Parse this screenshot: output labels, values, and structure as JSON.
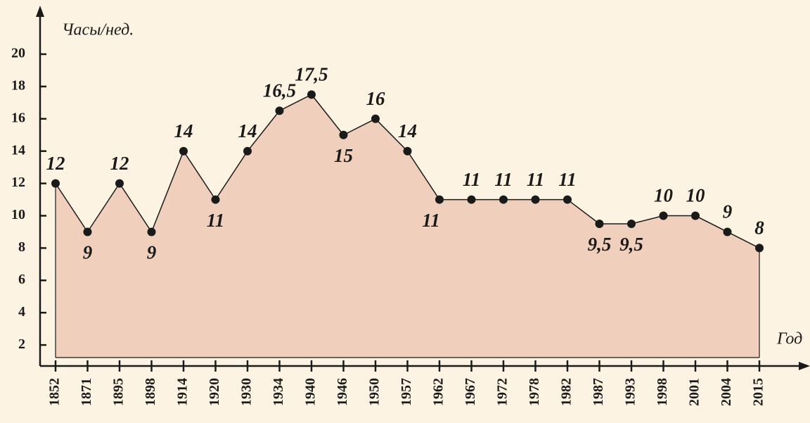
{
  "chart_data": {
    "type": "area",
    "y_label": "Часы/нед.",
    "x_label": "Год",
    "categories": [
      "1852",
      "1871",
      "1895",
      "1898",
      "1914",
      "1920",
      "1930",
      "1934",
      "1940",
      "1946",
      "1950",
      "1957",
      "1962",
      "1967",
      "1972",
      "1978",
      "1982",
      "1987",
      "1993",
      "1998",
      "2001",
      "2004",
      "2015"
    ],
    "values": [
      12,
      9,
      12,
      9,
      14,
      11,
      14,
      16.5,
      17.5,
      15,
      16,
      14,
      11,
      11,
      11,
      11,
      11,
      9.5,
      9.5,
      10,
      10,
      9,
      8
    ],
    "value_labels": [
      "12",
      "9",
      "12",
      "9",
      "14",
      "11",
      "14",
      "16,5",
      "17,5",
      "15",
      "16",
      "14",
      "11",
      "11",
      "11",
      "11",
      "11",
      "9,5",
      "9,5",
      "10",
      "10",
      "9",
      "8"
    ],
    "color": "#f0d0bc",
    "line_color": "#1a1a1a",
    "ylim": [
      0.7,
      22.7
    ],
    "yticks": [
      2,
      4,
      6,
      8,
      10,
      12,
      14,
      16,
      18,
      20
    ]
  }
}
